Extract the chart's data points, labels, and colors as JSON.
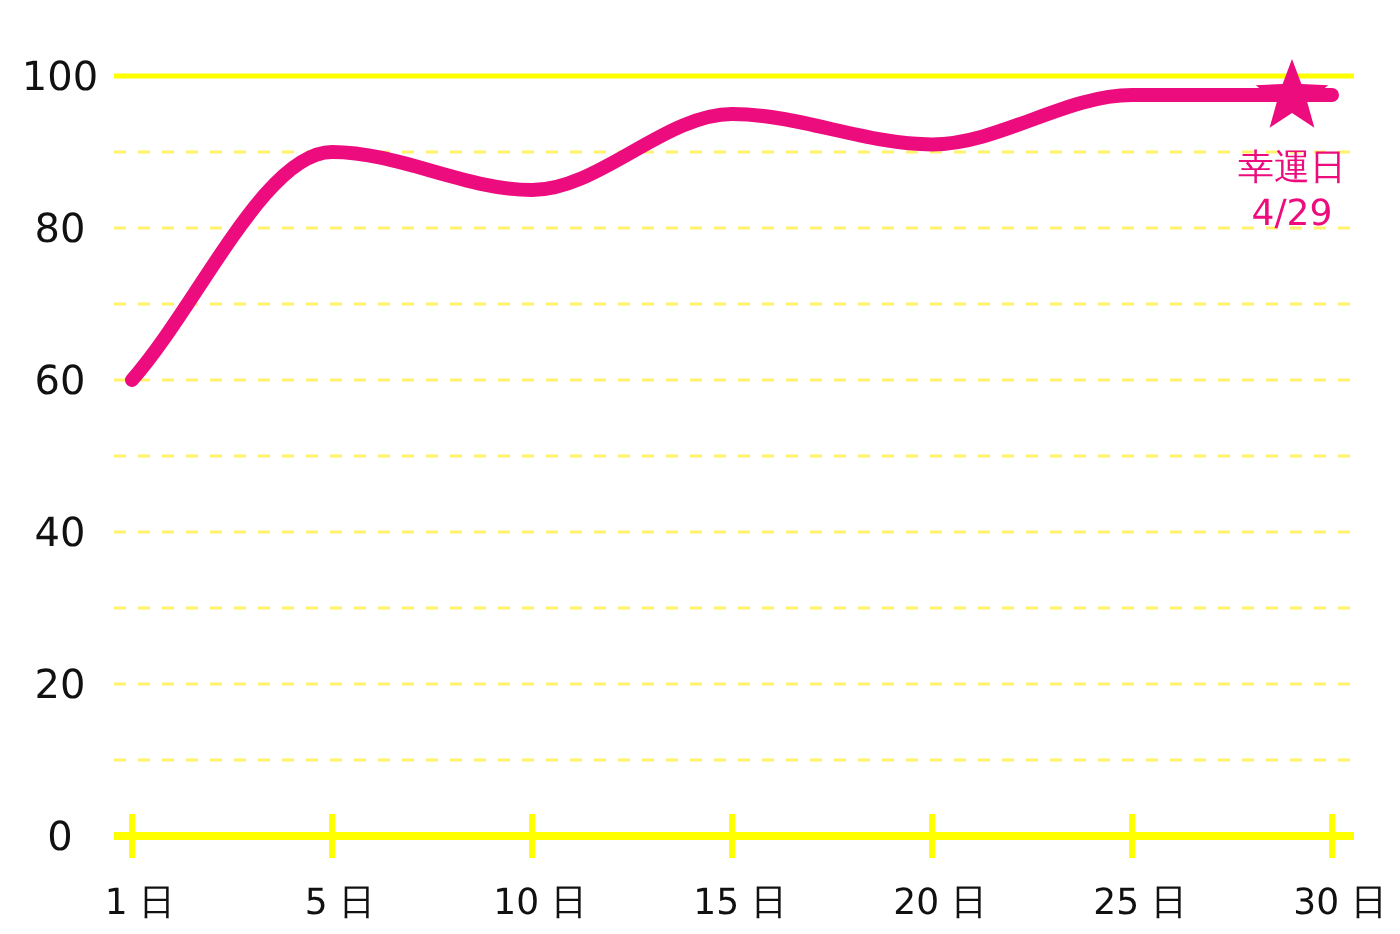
{
  "chart_data": {
    "type": "line",
    "categories": [
      "1 日",
      "5 日",
      "10 日",
      "15 日",
      "20 日",
      "25 日",
      "30 日"
    ],
    "series": [
      {
        "color": "#ec0c7e",
        "values": [
          60,
          90,
          85,
          95,
          91,
          97.5,
          97.5
        ]
      }
    ],
    "ylim": [
      0,
      100
    ],
    "yticks": [
      0,
      {
        "value": 10,
        "label": null
      },
      20,
      {
        "value": 30,
        "label": null
      },
      40,
      {
        "value": 50,
        "label": null
      },
      60,
      {
        "value": 70,
        "label": null
      },
      80,
      {
        "value": 90,
        "label": null
      },
      100
    ],
    "grid": "y",
    "annotations": [
      "幸運日",
      "4/29"
    ]
  }
}
